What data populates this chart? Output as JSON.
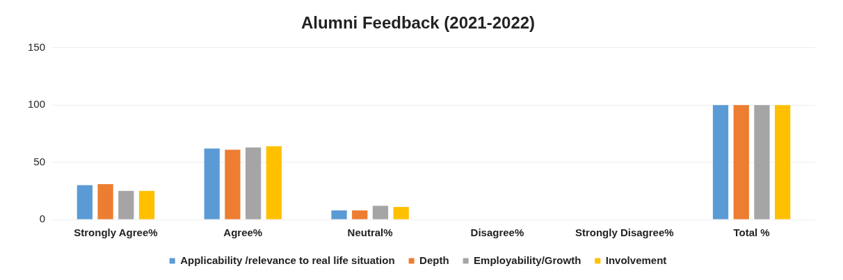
{
  "chart_data": {
    "type": "bar",
    "title": "Alumni Feedback (2021-2022)",
    "categories": [
      "Strongly Agree%",
      "Agree%",
      "Neutral%",
      "Disagree%",
      "Strongly Disagree%",
      "Total %"
    ],
    "series": [
      {
        "name": "Applicability /relevance to real life situation",
        "color": "#5b9bd5",
        "values": [
          30,
          62,
          8,
          0,
          0,
          100
        ]
      },
      {
        "name": "Depth",
        "color": "#ed7d31",
        "values": [
          31,
          61,
          8,
          0,
          0,
          100
        ]
      },
      {
        "name": "Employability/Growth",
        "color": "#a5a5a5",
        "values": [
          25,
          63,
          12,
          0,
          0,
          100
        ]
      },
      {
        "name": "Involvement",
        "color": "#ffc000",
        "values": [
          25,
          64,
          11,
          0,
          0,
          100
        ]
      }
    ],
    "ylim": [
      0,
      150
    ],
    "yticks": [
      0,
      50,
      100,
      150
    ],
    "grid": "y",
    "legend": "bottom"
  }
}
